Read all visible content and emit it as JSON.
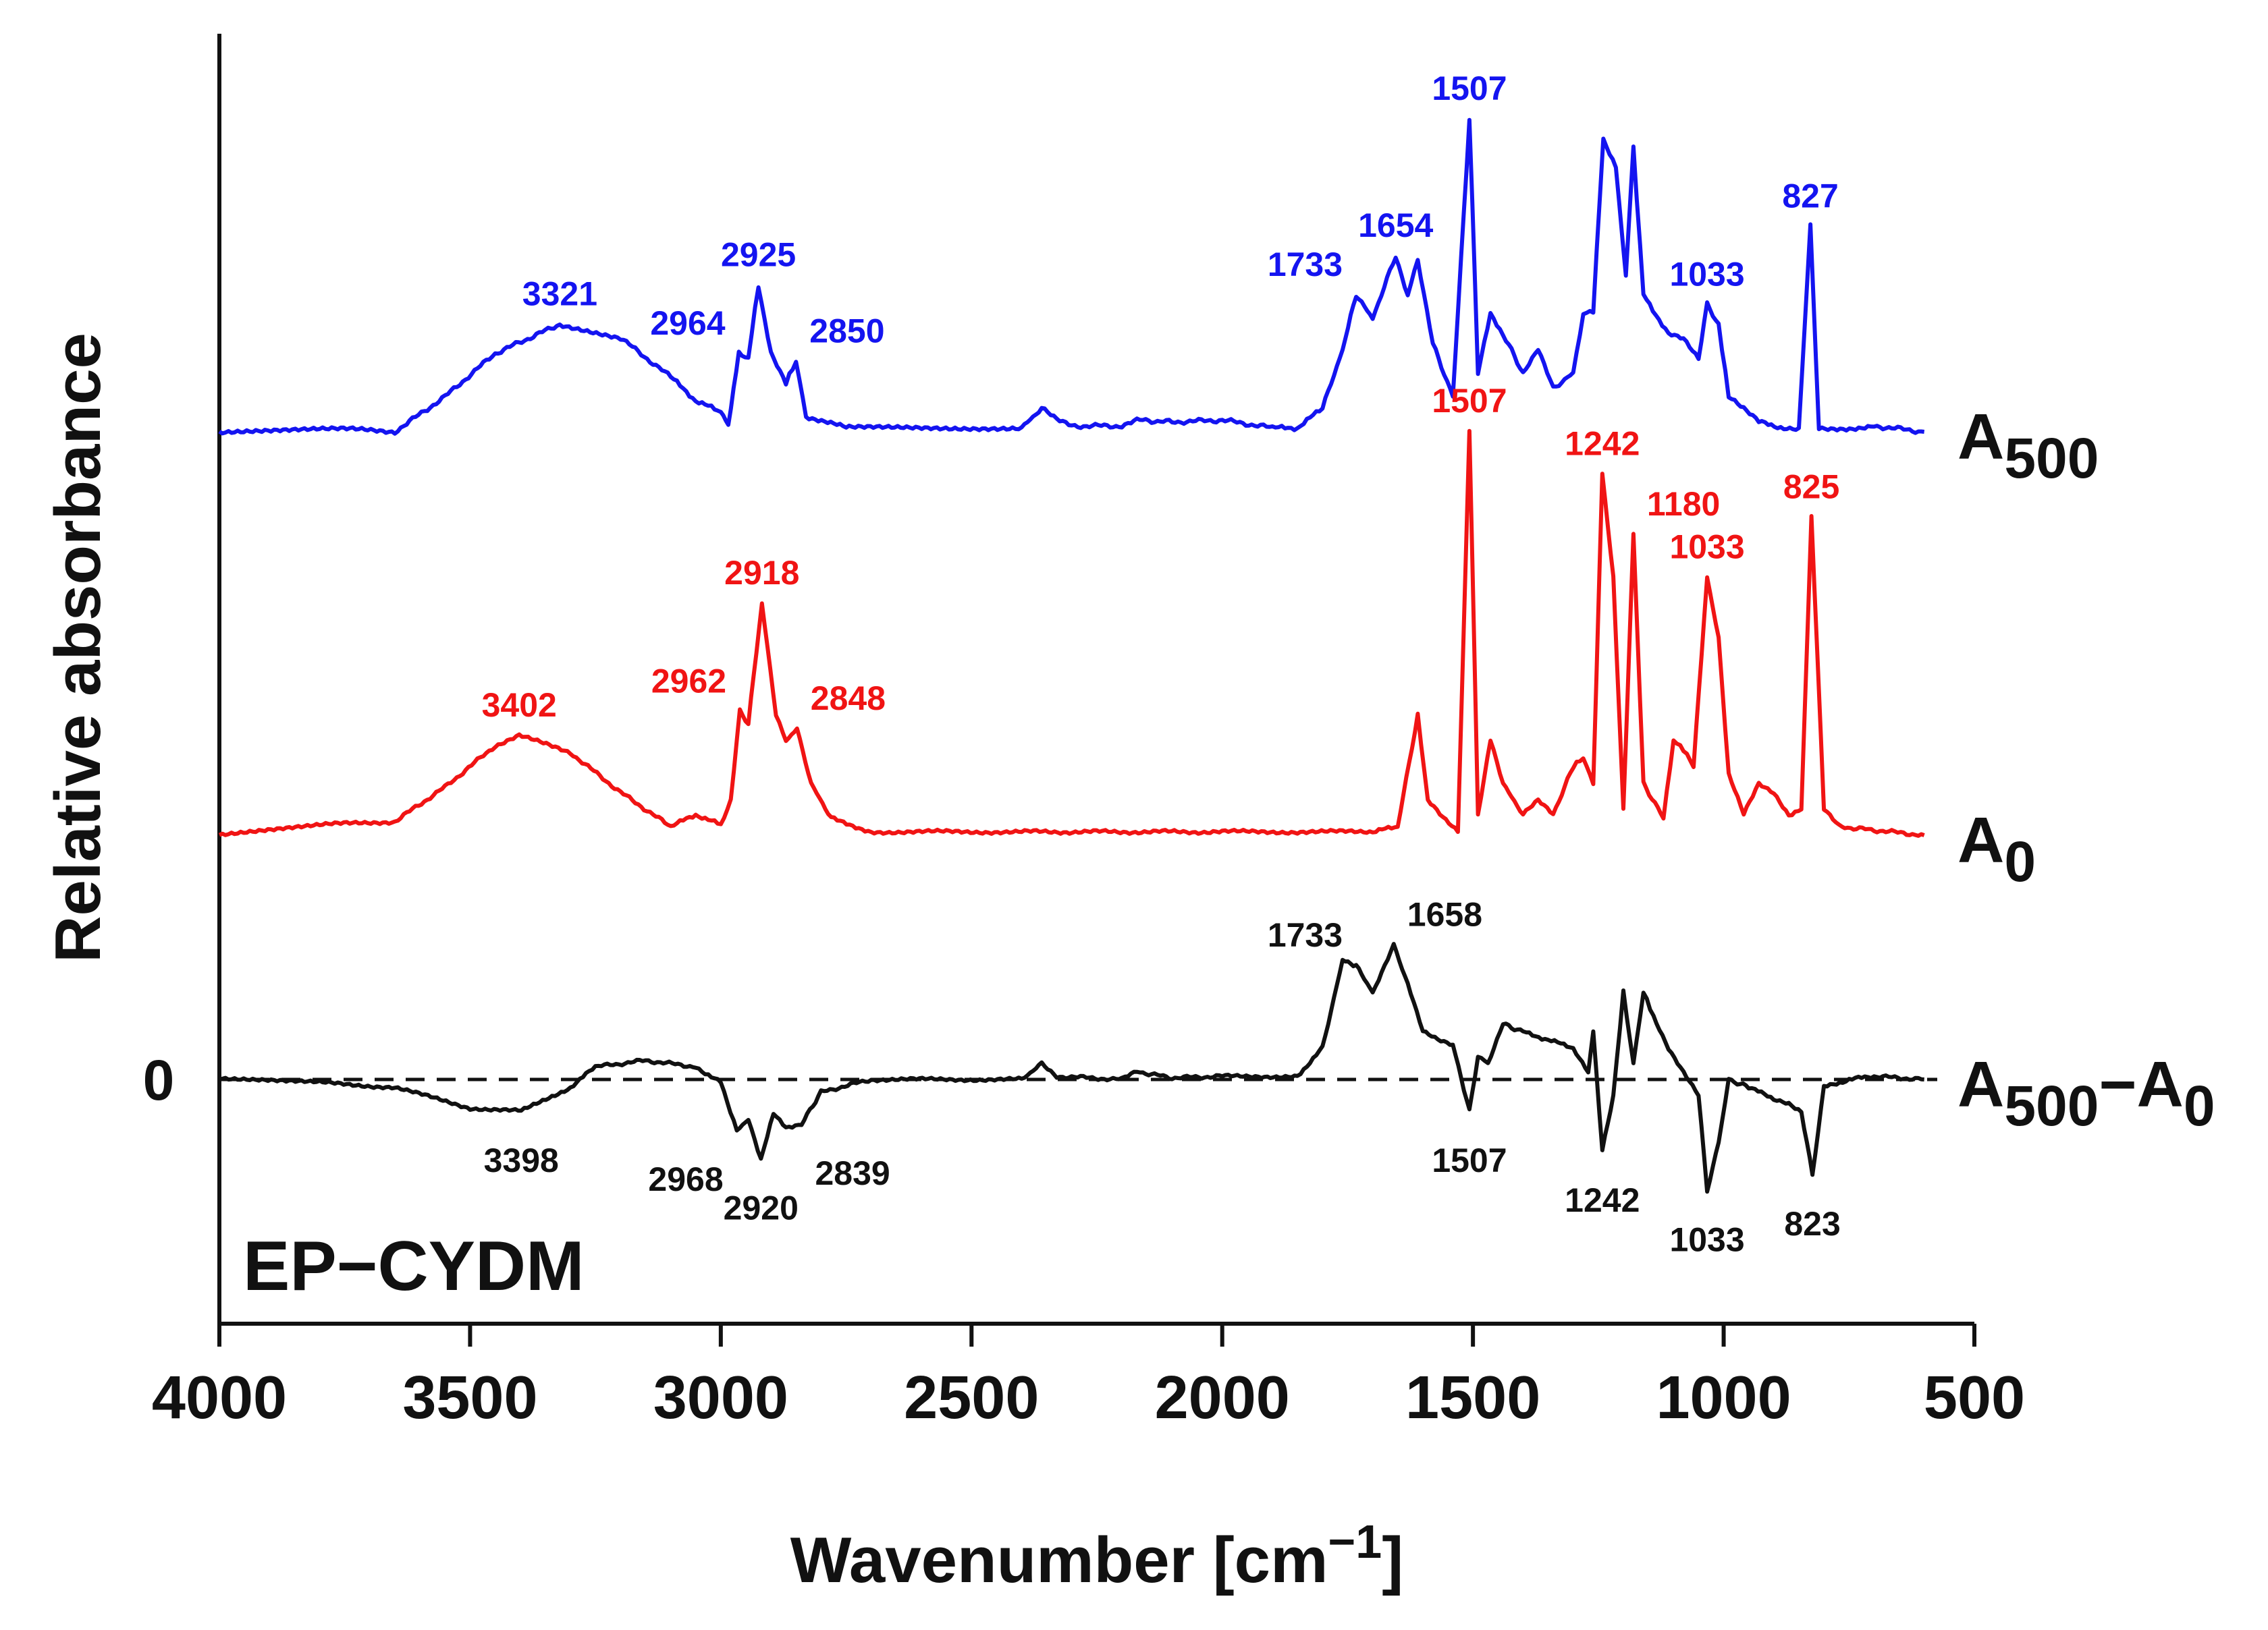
{
  "chart_data": {
    "type": "line",
    "title": "",
    "xlabel": {
      "main": "Wavenumber [cm",
      "sup": "−1",
      "close": "]"
    },
    "ylabel": "Relative absorbance",
    "xlim": [
      4000,
      500
    ],
    "x_reversed": true,
    "xticks": [
      4000,
      3500,
      3000,
      2500,
      2000,
      1500,
      1000,
      500
    ],
    "xtick_labels": [
      "4000",
      "3500",
      "3000",
      "2500",
      "2000",
      "1500",
      "1000",
      "500"
    ],
    "yticks_shown": false,
    "zero_label": "0",
    "sample_label": "EP−CYDM",
    "colors": {
      "A500": "#1414f0",
      "A0": "#f01414",
      "diff": "#111111",
      "axis": "#111111"
    },
    "series": [
      {
        "name": "A500",
        "label_main": "A",
        "label_sub": "500",
        "color": "#1414f0",
        "baseline": 0,
        "points": [
          [
            4000,
            0
          ],
          [
            3800,
            0.02
          ],
          [
            3650,
            0
          ],
          [
            3550,
            0.18
          ],
          [
            3450,
            0.4
          ],
          [
            3321,
            0.55
          ],
          [
            3200,
            0.48
          ],
          [
            3100,
            0.28
          ],
          [
            3050,
            0.16
          ],
          [
            3000,
            0.1
          ],
          [
            2985,
            0.04
          ],
          [
            2964,
            0.4
          ],
          [
            2945,
            0.38
          ],
          [
            2925,
            0.75
          ],
          [
            2900,
            0.4
          ],
          [
            2870,
            0.25
          ],
          [
            2850,
            0.36
          ],
          [
            2830,
            0.08
          ],
          [
            2750,
            0.02
          ],
          [
            2400,
            0.02
          ],
          [
            2360,
            0.12
          ],
          [
            2330,
            0.06
          ],
          [
            2300,
            0.03
          ],
          [
            2200,
            0.03
          ],
          [
            2170,
            0.06
          ],
          [
            2100,
            0.05
          ],
          [
            2000,
            0.06
          ],
          [
            1900,
            0.02
          ],
          [
            1850,
            0.02
          ],
          [
            1800,
            0.12
          ],
          [
            1760,
            0.42
          ],
          [
            1733,
            0.7
          ],
          [
            1700,
            0.58
          ],
          [
            1654,
            0.9
          ],
          [
            1630,
            0.7
          ],
          [
            1610,
            0.88
          ],
          [
            1580,
            0.45
          ],
          [
            1540,
            0.18
          ],
          [
            1507,
            1.6
          ],
          [
            1490,
            0.3
          ],
          [
            1465,
            0.6
          ],
          [
            1440,
            0.5
          ],
          [
            1400,
            0.3
          ],
          [
            1370,
            0.42
          ],
          [
            1340,
            0.22
          ],
          [
            1300,
            0.3
          ],
          [
            1280,
            0.6
          ],
          [
            1260,
            0.62
          ],
          [
            1240,
            1.5
          ],
          [
            1215,
            1.35
          ],
          [
            1195,
            0.8
          ],
          [
            1180,
            1.45
          ],
          [
            1160,
            0.7
          ],
          [
            1110,
            0.5
          ],
          [
            1080,
            0.48
          ],
          [
            1050,
            0.38
          ],
          [
            1033,
            0.65
          ],
          [
            1010,
            0.55
          ],
          [
            990,
            0.18
          ],
          [
            930,
            0.05
          ],
          [
            880,
            0.02
          ],
          [
            850,
            0.02
          ],
          [
            827,
            1.05
          ],
          [
            810,
            0.02
          ],
          [
            780,
            0.01
          ],
          [
            700,
            0.03
          ],
          [
            600,
            0.0
          ]
        ]
      },
      {
        "name": "A0",
        "label_main": "A",
        "label_sub": "0",
        "color": "#f01414",
        "baseline": 0,
        "points": [
          [
            4000,
            0
          ],
          [
            3800,
            0.06
          ],
          [
            3650,
            0.08
          ],
          [
            3550,
            0.28
          ],
          [
            3450,
            0.52
          ],
          [
            3402,
            0.58
          ],
          [
            3300,
            0.48
          ],
          [
            3200,
            0.25
          ],
          [
            3100,
            0.05
          ],
          [
            3050,
            0.12
          ],
          [
            3000,
            0.06
          ],
          [
            2980,
            0.2
          ],
          [
            2962,
            0.72
          ],
          [
            2945,
            0.65
          ],
          [
            2918,
            1.35
          ],
          [
            2890,
            0.7
          ],
          [
            2870,
            0.55
          ],
          [
            2848,
            0.62
          ],
          [
            2820,
            0.3
          ],
          [
            2780,
            0.1
          ],
          [
            2700,
            0.02
          ],
          [
            2400,
            0.02
          ],
          [
            2000,
            0.02
          ],
          [
            1700,
            0.02
          ],
          [
            1650,
            0.05
          ],
          [
            1610,
            0.7
          ],
          [
            1590,
            0.2
          ],
          [
            1560,
            0.1
          ],
          [
            1530,
            0.02
          ],
          [
            1507,
            2.35
          ],
          [
            1490,
            0.12
          ],
          [
            1465,
            0.55
          ],
          [
            1440,
            0.3
          ],
          [
            1400,
            0.12
          ],
          [
            1370,
            0.2
          ],
          [
            1340,
            0.12
          ],
          [
            1300,
            0.4
          ],
          [
            1280,
            0.45
          ],
          [
            1260,
            0.3
          ],
          [
            1242,
            2.1
          ],
          [
            1220,
            1.5
          ],
          [
            1200,
            0.15
          ],
          [
            1180,
            1.75
          ],
          [
            1160,
            0.3
          ],
          [
            1120,
            0.1
          ],
          [
            1100,
            0.55
          ],
          [
            1080,
            0.5
          ],
          [
            1060,
            0.4
          ],
          [
            1033,
            1.5
          ],
          [
            1010,
            1.15
          ],
          [
            990,
            0.35
          ],
          [
            960,
            0.12
          ],
          [
            930,
            0.3
          ],
          [
            900,
            0.25
          ],
          [
            870,
            0.12
          ],
          [
            845,
            0.15
          ],
          [
            825,
            1.85
          ],
          [
            800,
            0.15
          ],
          [
            770,
            0.05
          ],
          [
            700,
            0.03
          ],
          [
            600,
            0.0
          ]
        ]
      },
      {
        "name": "A500−A0",
        "label_main": "A",
        "label_sub": "500",
        "label_dash": "−",
        "label_main2": "A",
        "label_sub2": "0",
        "color": "#111111",
        "baseline": 0,
        "points": [
          [
            4000,
            0
          ],
          [
            3800,
            -0.02
          ],
          [
            3650,
            -0.05
          ],
          [
            3500,
            -0.18
          ],
          [
            3398,
            -0.2
          ],
          [
            3300,
            -0.05
          ],
          [
            3250,
            0.08
          ],
          [
            3150,
            0.12
          ],
          [
            3050,
            0.08
          ],
          [
            3000,
            -0.02
          ],
          [
            2968,
            -0.32
          ],
          [
            2945,
            -0.25
          ],
          [
            2920,
            -0.5
          ],
          [
            2895,
            -0.22
          ],
          [
            2870,
            -0.3
          ],
          [
            2839,
            -0.28
          ],
          [
            2800,
            -0.08
          ],
          [
            2700,
            0.0
          ],
          [
            2400,
            0.0
          ],
          [
            2360,
            0.1
          ],
          [
            2330,
            0.02
          ],
          [
            2200,
            0.0
          ],
          [
            2170,
            0.05
          ],
          [
            2100,
            0.01
          ],
          [
            2000,
            0.02
          ],
          [
            1850,
            0.02
          ],
          [
            1800,
            0.2
          ],
          [
            1760,
            0.75
          ],
          [
            1733,
            0.72
          ],
          [
            1700,
            0.55
          ],
          [
            1658,
            0.85
          ],
          [
            1630,
            0.6
          ],
          [
            1600,
            0.3
          ],
          [
            1570,
            0.25
          ],
          [
            1540,
            0.22
          ],
          [
            1507,
            -0.2
          ],
          [
            1490,
            0.15
          ],
          [
            1470,
            0.1
          ],
          [
            1440,
            0.35
          ],
          [
            1400,
            0.3
          ],
          [
            1350,
            0.25
          ],
          [
            1300,
            0.2
          ],
          [
            1270,
            0.05
          ],
          [
            1260,
            0.3
          ],
          [
            1242,
            -0.45
          ],
          [
            1220,
            -0.1
          ],
          [
            1200,
            0.55
          ],
          [
            1180,
            0.1
          ],
          [
            1160,
            0.55
          ],
          [
            1140,
            0.4
          ],
          [
            1110,
            0.2
          ],
          [
            1080,
            0.05
          ],
          [
            1050,
            -0.1
          ],
          [
            1033,
            -0.7
          ],
          [
            1010,
            -0.4
          ],
          [
            990,
            0.0
          ],
          [
            950,
            -0.05
          ],
          [
            900,
            -0.12
          ],
          [
            870,
            -0.15
          ],
          [
            845,
            -0.2
          ],
          [
            823,
            -0.6
          ],
          [
            800,
            -0.05
          ],
          [
            750,
            0.0
          ],
          [
            700,
            0.02
          ],
          [
            600,
            0.0
          ]
        ]
      }
    ],
    "annotations": [
      {
        "series": "A500",
        "x": 3321,
        "y": 0.55,
        "label": "3321",
        "color": "#1414f0",
        "pos": "above"
      },
      {
        "series": "A500",
        "x": 2964,
        "y": 0.4,
        "label": "2964",
        "color": "#1414f0",
        "pos": "above-left"
      },
      {
        "series": "A500",
        "x": 2925,
        "y": 0.75,
        "label": "2925",
        "color": "#1414f0",
        "pos": "above"
      },
      {
        "series": "A500",
        "x": 2850,
        "y": 0.36,
        "label": "2850",
        "color": "#1414f0",
        "pos": "above-right"
      },
      {
        "series": "A500",
        "x": 1733,
        "y": 0.7,
        "label": "1733",
        "color": "#1414f0",
        "pos": "above-left"
      },
      {
        "series": "A500",
        "x": 1654,
        "y": 0.9,
        "label": "1654",
        "color": "#1414f0",
        "pos": "above"
      },
      {
        "series": "A500",
        "x": 1507,
        "y": 1.6,
        "label": "1507",
        "color": "#1414f0",
        "pos": "above"
      },
      {
        "series": "A500",
        "x": 1033,
        "y": 0.65,
        "label": "1033",
        "color": "#1414f0",
        "pos": "above"
      },
      {
        "series": "A500",
        "x": 827,
        "y": 1.05,
        "label": "827",
        "color": "#1414f0",
        "pos": "above"
      },
      {
        "series": "A0",
        "x": 3402,
        "y": 0.58,
        "label": "3402",
        "color": "#f01414",
        "pos": "above"
      },
      {
        "series": "A0",
        "x": 2962,
        "y": 0.72,
        "label": "2962",
        "color": "#f01414",
        "pos": "above-left"
      },
      {
        "series": "A0",
        "x": 2918,
        "y": 1.35,
        "label": "2918",
        "color": "#f01414",
        "pos": "above"
      },
      {
        "series": "A0",
        "x": 2848,
        "y": 0.62,
        "label": "2848",
        "color": "#f01414",
        "pos": "above-right"
      },
      {
        "series": "A0",
        "x": 1507,
        "y": 2.35,
        "label": "1507",
        "color": "#f01414",
        "pos": "above"
      },
      {
        "series": "A0",
        "x": 1242,
        "y": 2.1,
        "label": "1242",
        "color": "#f01414",
        "pos": "above"
      },
      {
        "series": "A0",
        "x": 1180,
        "y": 1.75,
        "label": "1180",
        "color": "#f01414",
        "pos": "above-right"
      },
      {
        "series": "A0",
        "x": 1033,
        "y": 1.5,
        "label": "1033",
        "color": "#f01414",
        "pos": "above"
      },
      {
        "series": "A0",
        "x": 825,
        "y": 1.85,
        "label": "825",
        "color": "#f01414",
        "pos": "above"
      },
      {
        "series": "A500−A0",
        "x": 1733,
        "y": 0.72,
        "label": "1733",
        "color": "#111111",
        "pos": "above-left"
      },
      {
        "series": "A500−A0",
        "x": 1658,
        "y": 0.85,
        "label": "1658",
        "color": "#111111",
        "pos": "above-right"
      },
      {
        "series": "A500−A0",
        "x": 3398,
        "y": -0.2,
        "label": "3398",
        "color": "#111111",
        "pos": "below"
      },
      {
        "series": "A500−A0",
        "x": 2968,
        "y": -0.32,
        "label": "2968",
        "color": "#111111",
        "pos": "below-left"
      },
      {
        "series": "A500−A0",
        "x": 2920,
        "y": -0.5,
        "label": "2920",
        "color": "#111111",
        "pos": "below"
      },
      {
        "series": "A500−A0",
        "x": 2839,
        "y": -0.28,
        "label": "2839",
        "color": "#111111",
        "pos": "below-right"
      },
      {
        "series": "A500−A0",
        "x": 1507,
        "y": -0.2,
        "label": "1507",
        "color": "#111111",
        "pos": "below"
      },
      {
        "series": "A500−A0",
        "x": 1242,
        "y": -0.45,
        "label": "1242",
        "color": "#111111",
        "pos": "below"
      },
      {
        "series": "A500−A0",
        "x": 1033,
        "y": -0.7,
        "label": "1033",
        "color": "#111111",
        "pos": "below"
      },
      {
        "series": "A500−A0",
        "x": 823,
        "y": -0.6,
        "label": "823",
        "color": "#111111",
        "pos": "below"
      }
    ]
  }
}
